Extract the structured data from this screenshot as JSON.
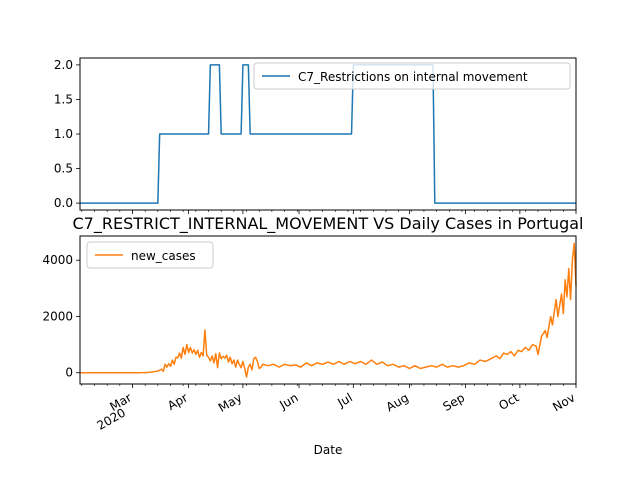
{
  "chart_data": [
    {
      "type": "line",
      "title": "",
      "xlabel": "",
      "ylabel": "",
      "x_range": [
        "2020-02-01",
        "2020-11-01"
      ],
      "ylim": [
        -0.1,
        2.1
      ],
      "yticks": [
        0.0,
        0.5,
        1.0,
        1.5,
        2.0
      ],
      "ytick_labels": [
        "0.0",
        "0.5",
        "1.0",
        "1.5",
        "2.0"
      ],
      "legend_position": "top-right",
      "grid": false,
      "series": [
        {
          "name": "C7_Restrictions on internal movement",
          "color": "#1f77b4",
          "step_points": [
            [
              "2020-02-01",
              0
            ],
            [
              "2020-03-15",
              0
            ],
            [
              "2020-03-16",
              1
            ],
            [
              "2020-04-12",
              1
            ],
            [
              "2020-04-13",
              2
            ],
            [
              "2020-04-18",
              2
            ],
            [
              "2020-04-19",
              1
            ],
            [
              "2020-04-30",
              1
            ],
            [
              "2020-05-01",
              2
            ],
            [
              "2020-05-04",
              2
            ],
            [
              "2020-05-05",
              1
            ],
            [
              "2020-06-30",
              1
            ],
            [
              "2020-07-01",
              2
            ],
            [
              "2020-08-14",
              2
            ],
            [
              "2020-08-15",
              0
            ],
            [
              "2020-11-01",
              0
            ]
          ]
        }
      ]
    },
    {
      "type": "line",
      "title": "C7_RESTRICT_INTERNAL_MOVEMENT VS Daily Cases in Portugal",
      "xlabel": "Date",
      "ylabel": "",
      "x_range": [
        "2020-02-01",
        "2020-11-01"
      ],
      "ylim": [
        -400,
        4860
      ],
      "yticks": [
        0,
        2000,
        4000
      ],
      "ytick_labels": [
        "0",
        "2000",
        "4000"
      ],
      "xticks": [
        {
          "date": "2020-03-01",
          "label": "Mar",
          "sublabel": "2020"
        },
        {
          "date": "2020-04-01",
          "label": "Apr",
          "sublabel": ""
        },
        {
          "date": "2020-05-01",
          "label": "May",
          "sublabel": ""
        },
        {
          "date": "2020-06-01",
          "label": "Jun",
          "sublabel": ""
        },
        {
          "date": "2020-07-01",
          "label": "Jul",
          "sublabel": ""
        },
        {
          "date": "2020-08-01",
          "label": "Aug",
          "sublabel": ""
        },
        {
          "date": "2020-09-01",
          "label": "Sep",
          "sublabel": ""
        },
        {
          "date": "2020-10-01",
          "label": "Oct",
          "sublabel": ""
        },
        {
          "date": "2020-11-01",
          "label": "Nov",
          "sublabel": ""
        }
      ],
      "legend_position": "top-left",
      "grid": false,
      "series": [
        {
          "name": "new_cases",
          "color": "#ff7f0e",
          "points": [
            [
              "2020-02-01",
              0
            ],
            [
              "2020-02-20",
              0
            ],
            [
              "2020-03-02",
              2
            ],
            [
              "2020-03-06",
              3
            ],
            [
              "2020-03-09",
              10
            ],
            [
              "2020-03-11",
              20
            ],
            [
              "2020-03-13",
              40
            ],
            [
              "2020-03-15",
              60
            ],
            [
              "2020-03-16",
              90
            ],
            [
              "2020-03-17",
              130
            ],
            [
              "2020-03-18",
              50
            ],
            [
              "2020-03-19",
              300
            ],
            [
              "2020-03-20",
              200
            ],
            [
              "2020-03-21",
              320
            ],
            [
              "2020-03-22",
              230
            ],
            [
              "2020-03-23",
              450
            ],
            [
              "2020-03-24",
              300
            ],
            [
              "2020-03-25",
              550
            ],
            [
              "2020-03-26",
              530
            ],
            [
              "2020-03-27",
              700
            ],
            [
              "2020-03-28",
              520
            ],
            [
              "2020-03-29",
              900
            ],
            [
              "2020-03-30",
              650
            ],
            [
              "2020-03-31",
              1000
            ],
            [
              "2020-04-01",
              720
            ],
            [
              "2020-04-02",
              900
            ],
            [
              "2020-04-03",
              700
            ],
            [
              "2020-04-04",
              820
            ],
            [
              "2020-04-05",
              650
            ],
            [
              "2020-04-06",
              800
            ],
            [
              "2020-04-07",
              550
            ],
            [
              "2020-04-08",
              720
            ],
            [
              "2020-04-09",
              600
            ],
            [
              "2020-04-10",
              1520
            ],
            [
              "2020-04-11",
              620
            ],
            [
              "2020-04-12",
              550
            ],
            [
              "2020-04-13",
              420
            ],
            [
              "2020-04-14",
              600
            ],
            [
              "2020-04-15",
              350
            ],
            [
              "2020-04-16",
              680
            ],
            [
              "2020-04-17",
              180
            ],
            [
              "2020-04-18",
              700
            ],
            [
              "2020-04-19",
              500
            ],
            [
              "2020-04-20",
              580
            ],
            [
              "2020-04-21",
              520
            ],
            [
              "2020-04-22",
              620
            ],
            [
              "2020-04-23",
              380
            ],
            [
              "2020-04-24",
              550
            ],
            [
              "2020-04-25",
              320
            ],
            [
              "2020-04-26",
              450
            ],
            [
              "2020-04-27",
              200
            ],
            [
              "2020-04-28",
              450
            ],
            [
              "2020-04-29",
              300
            ],
            [
              "2020-04-30",
              180
            ],
            [
              "2020-05-01",
              400
            ],
            [
              "2020-05-02",
              150
            ],
            [
              "2020-05-03",
              -150
            ],
            [
              "2020-05-04",
              200
            ],
            [
              "2020-05-05",
              300
            ],
            [
              "2020-05-06",
              100
            ],
            [
              "2020-05-07",
              500
            ],
            [
              "2020-05-08",
              550
            ],
            [
              "2020-05-09",
              400
            ],
            [
              "2020-05-10",
              150
            ],
            [
              "2020-05-11",
              200
            ],
            [
              "2020-05-12",
              300
            ],
            [
              "2020-05-15",
              250
            ],
            [
              "2020-05-18",
              300
            ],
            [
              "2020-05-21",
              200
            ],
            [
              "2020-05-24",
              300
            ],
            [
              "2020-05-27",
              250
            ],
            [
              "2020-05-30",
              280
            ],
            [
              "2020-06-02",
              200
            ],
            [
              "2020-06-05",
              350
            ],
            [
              "2020-06-08",
              250
            ],
            [
              "2020-06-11",
              350
            ],
            [
              "2020-06-14",
              300
            ],
            [
              "2020-06-17",
              380
            ],
            [
              "2020-06-20",
              300
            ],
            [
              "2020-06-23",
              400
            ],
            [
              "2020-06-26",
              300
            ],
            [
              "2020-06-29",
              400
            ],
            [
              "2020-07-02",
              320
            ],
            [
              "2020-07-05",
              400
            ],
            [
              "2020-07-08",
              300
            ],
            [
              "2020-07-11",
              450
            ],
            [
              "2020-07-14",
              300
            ],
            [
              "2020-07-17",
              380
            ],
            [
              "2020-07-20",
              250
            ],
            [
              "2020-07-23",
              300
            ],
            [
              "2020-07-26",
              200
            ],
            [
              "2020-07-29",
              250
            ],
            [
              "2020-08-01",
              150
            ],
            [
              "2020-08-04",
              250
            ],
            [
              "2020-08-07",
              150
            ],
            [
              "2020-08-10",
              200
            ],
            [
              "2020-08-13",
              250
            ],
            [
              "2020-08-16",
              200
            ],
            [
              "2020-08-19",
              300
            ],
            [
              "2020-08-22",
              200
            ],
            [
              "2020-08-25",
              250
            ],
            [
              "2020-08-28",
              200
            ],
            [
              "2020-08-31",
              250
            ],
            [
              "2020-09-03",
              350
            ],
            [
              "2020-09-06",
              300
            ],
            [
              "2020-09-09",
              450
            ],
            [
              "2020-09-12",
              400
            ],
            [
              "2020-09-15",
              500
            ],
            [
              "2020-09-18",
              600
            ],
            [
              "2020-09-20",
              500
            ],
            [
              "2020-09-22",
              700
            ],
            [
              "2020-09-24",
              650
            ],
            [
              "2020-09-26",
              750
            ],
            [
              "2020-09-28",
              600
            ],
            [
              "2020-09-30",
              800
            ],
            [
              "2020-10-02",
              750
            ],
            [
              "2020-10-04",
              900
            ],
            [
              "2020-10-06",
              800
            ],
            [
              "2020-10-08",
              1000
            ],
            [
              "2020-10-10",
              950
            ],
            [
              "2020-10-11",
              650
            ],
            [
              "2020-10-13",
              1300
            ],
            [
              "2020-10-15",
              1500
            ],
            [
              "2020-10-16",
              1250
            ],
            [
              "2020-10-18",
              2000
            ],
            [
              "2020-10-19",
              1700
            ],
            [
              "2020-10-21",
              2600
            ],
            [
              "2020-10-22",
              2000
            ],
            [
              "2020-10-23",
              2400
            ],
            [
              "2020-10-24",
              2800
            ],
            [
              "2020-10-25",
              2100
            ],
            [
              "2020-10-26",
              3300
            ],
            [
              "2020-10-27",
              2700
            ],
            [
              "2020-10-28",
              3700
            ],
            [
              "2020-10-29",
              2600
            ],
            [
              "2020-10-30",
              4000
            ],
            [
              "2020-10-31",
              4600
            ],
            [
              "2020-11-01",
              3100
            ]
          ]
        }
      ]
    }
  ]
}
